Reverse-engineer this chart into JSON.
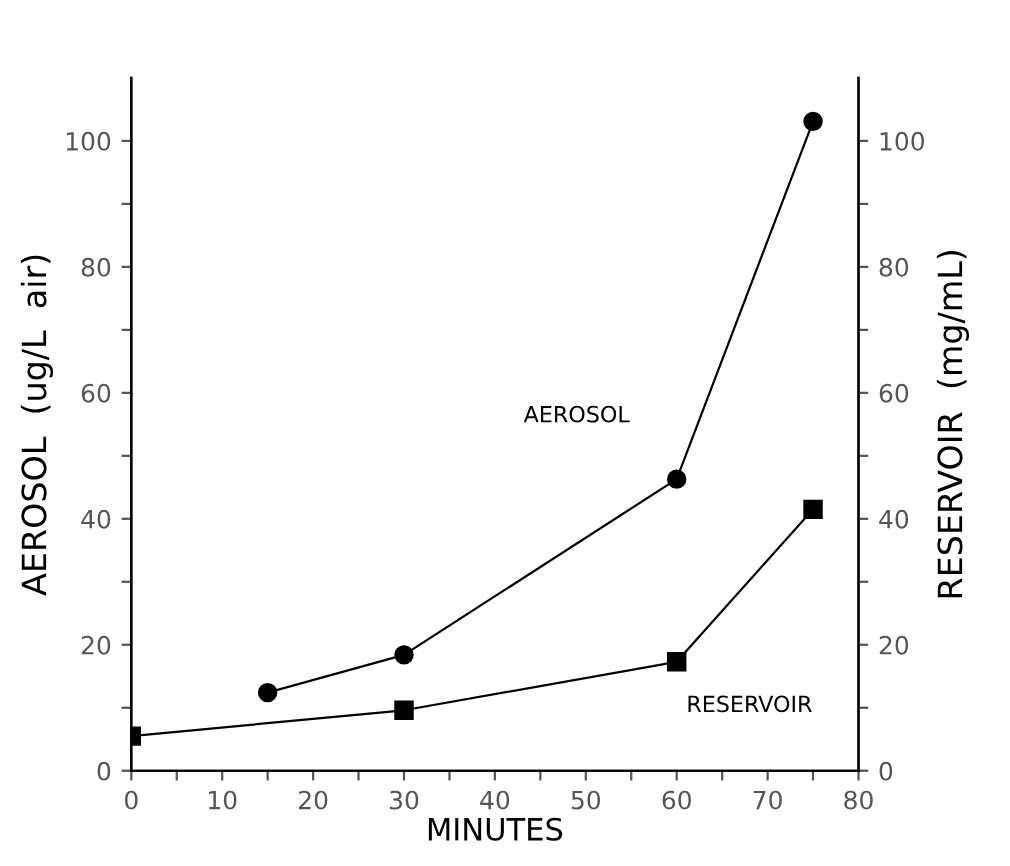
{
  "chart_data": {
    "type": "line",
    "xlabel": "MINUTES",
    "ylabel": "AEROSOL  (ug/L  air)",
    "y2label": "RESERVOIR  (mg/mL)",
    "series": [
      {
        "name": "AEROSOL",
        "color": "#000000",
        "marker": "circle",
        "x": [
          15,
          30,
          60,
          75
        ],
        "values": [
          12.4,
          18.4,
          46.3,
          103.1
        ]
      },
      {
        "name": "RESERVOIR",
        "color": "#000000",
        "marker": "square",
        "axis": "y2",
        "x": [
          0,
          30,
          60,
          75
        ],
        "values": [
          5.5,
          9.6,
          17.3,
          41.5
        ]
      }
    ],
    "xlim": [
      0,
      80
    ],
    "ylim": [
      0,
      110
    ],
    "y2lim": [
      0,
      110
    ],
    "xticks": [
      0,
      {
        "value": 5,
        "label": null
      },
      10,
      {
        "value": 15,
        "label": null
      },
      20,
      {
        "value": 25,
        "label": null
      },
      30,
      {
        "value": 35,
        "label": null
      },
      40,
      {
        "value": 45,
        "label": null
      },
      50,
      {
        "value": 55,
        "label": null
      },
      60,
      {
        "value": 65,
        "label": null
      },
      70,
      {
        "value": 75,
        "label": null
      },
      80
    ],
    "yticks": [
      0,
      {
        "value": 10,
        "label": null
      },
      20,
      {
        "value": 30,
        "label": null
      },
      40,
      {
        "value": 50,
        "label": null
      },
      60,
      {
        "value": 70,
        "label": null
      },
      80,
      {
        "value": 90,
        "label": null
      },
      100
    ],
    "y2ticks": [
      0,
      {
        "value": 10,
        "label": null
      },
      20,
      {
        "value": 30,
        "label": null
      },
      40,
      {
        "value": 50,
        "label": null
      },
      60,
      {
        "value": 70,
        "label": null
      },
      80,
      {
        "value": 90,
        "label": null
      },
      100
    ],
    "grid": false,
    "legend": false,
    "line_style": "solid"
  }
}
